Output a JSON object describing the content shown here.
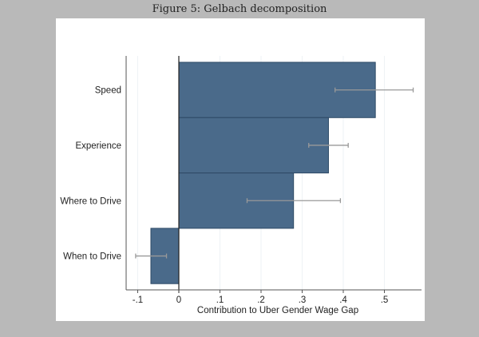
{
  "chart_data": {
    "type": "bar",
    "orientation": "horizontal",
    "title": "Figure 5: Gelbach decomposition",
    "xlabel": "Contribution to Uber Gender Wage Gap",
    "ylabel": "",
    "categories": [
      "Speed",
      "Experience",
      "Where to Drive",
      "When to Drive"
    ],
    "values": [
      0.478,
      0.364,
      0.279,
      -0.068
    ],
    "error_low": [
      0.38,
      0.316,
      0.166,
      -0.105
    ],
    "error_high": [
      0.57,
      0.412,
      0.393,
      -0.03
    ],
    "xlim": [
      -0.13,
      0.59
    ],
    "xticks": [
      -0.1,
      0,
      0.1,
      0.2,
      0.3,
      0.4,
      0.5
    ],
    "xtick_labels": [
      "-.1",
      "0",
      ".1",
      ".2",
      ".3",
      ".4",
      ".5"
    ],
    "grid": true,
    "bar_color": "#4a6a8a",
    "error_color": "#999999"
  }
}
